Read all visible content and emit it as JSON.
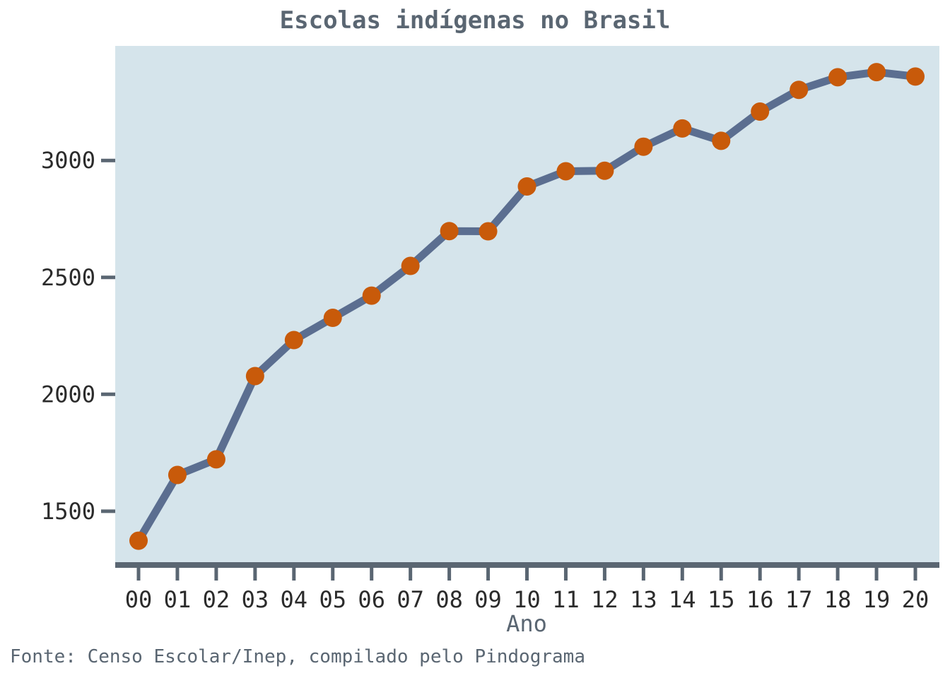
{
  "chart_data": {
    "type": "line",
    "title": "Escolas indígenas no Brasil",
    "xlabel": "Ano",
    "ylabel": "",
    "categories": [
      "00",
      "01",
      "02",
      "03",
      "04",
      "05",
      "06",
      "07",
      "08",
      "09",
      "10",
      "11",
      "12",
      "13",
      "14",
      "15",
      "16",
      "17",
      "18",
      "19",
      "20"
    ],
    "series": [
      {
        "values": [
          1374,
          1655,
          1722,
          2078,
          2232,
          2327,
          2422,
          2549,
          2698,
          2697,
          2889,
          2954,
          2956,
          3059,
          3137,
          3084,
          3209,
          3302,
          3356,
          3378,
          3359
        ]
      }
    ],
    "yticks": [
      1500,
      2000,
      2500,
      3000
    ],
    "ytick_labels": [
      "1500",
      "2000",
      "2500",
      "3000"
    ],
    "ylim": [
      1270,
      3490
    ],
    "grid": false,
    "source": "Fonte: Censo Escolar/Inep, compilado pelo Pindograma",
    "colors": {
      "panel_background": "#d5e4eb",
      "line": "#5b6e90",
      "marker": "#c85a0a",
      "axis": "#5a6672",
      "text": "#5a6672",
      "tick_text": "#2b2b2b"
    }
  }
}
